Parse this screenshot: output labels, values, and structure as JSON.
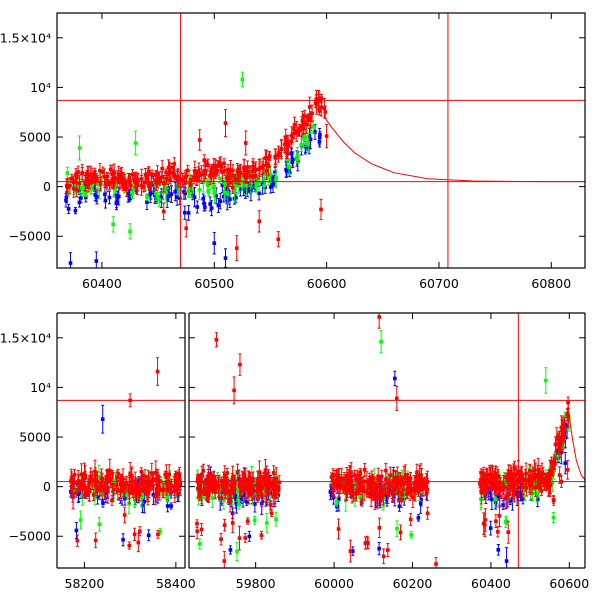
{
  "colors": {
    "frame": "#000000",
    "red": "#ff0000",
    "blue": "#0000ff",
    "green": "#00ff00",
    "model": "#ff0000"
  },
  "chart_data": [
    {
      "type": "scatter",
      "panel": "top",
      "xlim": [
        60360,
        60830
      ],
      "ylim": [
        -8200,
        17500
      ],
      "xticks": [
        60400,
        60500,
        60600,
        60700,
        60800
      ],
      "yticks": [
        -5000,
        0,
        5000,
        10000,
        15000
      ],
      "ytick_labels": [
        "−5000",
        "0",
        "5000",
        "10⁴",
        "1.5×10⁴"
      ],
      "hlines": [
        8700,
        500
      ],
      "vlines": [
        60470,
        60708
      ],
      "model_curve": {
        "x": [
          60598,
          60605,
          60615,
          60625,
          60640,
          60660,
          60690,
          60730,
          60790,
          60830
        ],
        "y": [
          7000,
          5900,
          4500,
          3400,
          2300,
          1400,
          800,
          570,
          510,
          505
        ]
      },
      "series": [
        {
          "color": "red",
          "x": [
            60368,
            60385,
            60400,
            60420,
            60440,
            60460,
            60475,
            60490,
            60505,
            60515,
            60525,
            60535,
            60545,
            60555,
            60565,
            60575,
            60582,
            60588,
            60592,
            60597,
            60600
          ],
          "y": [
            300,
            800,
            1000,
            500,
            600,
            1200,
            900,
            1500,
            2000,
            800,
            1200,
            1600,
            2300,
            3000,
            4100,
            5600,
            6600,
            7500,
            8300,
            8600,
            7800
          ],
          "outliers": [
            [
              60487,
              4700
            ],
            [
              60510,
              6400
            ],
            [
              60528,
              4400
            ],
            [
              60540,
              -3500
            ],
            [
              60557,
              -5300
            ],
            [
              60520,
              -6200
            ],
            [
              60475,
              -4200
            ],
            [
              60455,
              -2500
            ],
            [
              60595,
              -2300
            ],
            [
              60600,
              5100
            ]
          ]
        },
        {
          "color": "blue",
          "x": [
            60368,
            60385,
            60400,
            60420,
            60440,
            60460,
            60480,
            60500,
            60520,
            60540,
            60555,
            60565,
            60575,
            60585,
            60595
          ],
          "y": [
            -1500,
            -800,
            -500,
            -1200,
            -900,
            -700,
            -1500,
            -1200,
            -600,
            -200,
            500,
            1600,
            3100,
            4600,
            5600
          ],
          "outliers": [
            [
              60372,
              -7700
            ],
            [
              60395,
              -7500
            ],
            [
              60500,
              -5700
            ],
            [
              60510,
              -7200
            ]
          ]
        },
        {
          "color": "green",
          "x": [
            60368,
            60385,
            60400,
            60420,
            60440,
            60460,
            60480,
            60500,
            60520,
            60540,
            60560,
            60575,
            60590
          ],
          "y": [
            300,
            -200,
            400,
            100,
            -300,
            400,
            200,
            -100,
            300,
            600,
            1300,
            3100,
            6300
          ],
          "outliers": [
            [
              60380,
              3900
            ],
            [
              60430,
              4400
            ],
            [
              60525,
              10800
            ],
            [
              60410,
              -3800
            ],
            [
              60425,
              -4500
            ]
          ]
        }
      ]
    },
    {
      "type": "scatter",
      "panel": "bottom",
      "broken_axis": true,
      "ylim": [
        -8200,
        17500
      ],
      "yticks": [
        -5000,
        0,
        5000,
        10000,
        15000
      ],
      "ytick_labels": [
        "−5000",
        "0",
        "5000",
        "10⁴",
        "1.5×10⁴"
      ],
      "hlines": [
        8700,
        500
      ],
      "segments": [
        {
          "xlim": [
            58140,
            58420
          ],
          "xticks": [
            58200,
            58400
          ],
          "clusters": [
            [
              58170,
              58410
            ]
          ],
          "vline": null
        },
        {
          "xlim": [
            59630,
            60640
          ],
          "xticks": [
            59800,
            60000,
            60200,
            60400,
            60600
          ],
          "clusters": [
            [
              59650,
              59860
            ],
            [
              59990,
              60240
            ],
            [
              60370,
              60600
            ]
          ],
          "vline": 60470
        }
      ],
      "highlights": [
        [
          58300,
          8700,
          "red"
        ],
        [
          58360,
          11600,
          "red"
        ],
        [
          58240,
          6800,
          "blue"
        ],
        [
          59700,
          14800,
          "red"
        ],
        [
          59760,
          12300,
          "red"
        ],
        [
          59745,
          9700,
          "red"
        ],
        [
          60115,
          17100,
          "red"
        ],
        [
          60120,
          14600,
          "green"
        ],
        [
          60155,
          10900,
          "blue"
        ],
        [
          60160,
          8900,
          "red"
        ],
        [
          60540,
          10700,
          "green"
        ],
        [
          59720,
          -7500,
          "red"
        ],
        [
          60260,
          -7800,
          "red"
        ],
        [
          60440,
          -7500,
          "blue"
        ]
      ]
    }
  ]
}
